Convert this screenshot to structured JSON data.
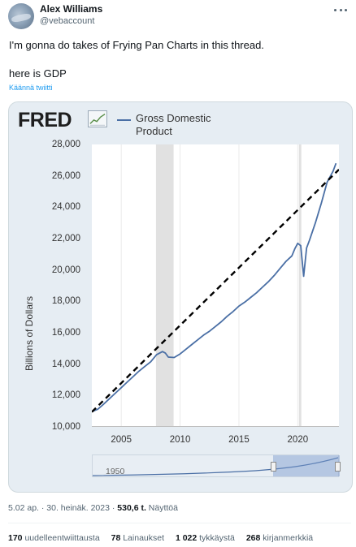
{
  "tweet": {
    "author_name": "Alex Williams",
    "author_handle": "@vebaccount",
    "text_line1": "I'm gonna do takes of Frying Pan Charts in this thread.",
    "text_line2": "here is GDP",
    "translate_label": "Käännä twiitti"
  },
  "fred": {
    "logo": "FRED",
    "series_name_line1": "Gross Domestic",
    "series_name_line2": "Product",
    "y_axis_title": "Billions of Dollars",
    "navigator_start_label": "1950"
  },
  "chart_data": {
    "type": "line",
    "ylabel": "Billions of Dollars",
    "ylim": [
      10000,
      28000
    ],
    "xlim": [
      2002.5,
      2023.5
    ],
    "y_ticks": [
      "28,000",
      "26,000",
      "24,000",
      "22,000",
      "20,000",
      "18,000",
      "16,000",
      "14,000",
      "12,000",
      "10,000"
    ],
    "x_ticks": [
      "2005",
      "2010",
      "2015",
      "2020"
    ],
    "grid": "vertical",
    "series": [
      {
        "name": "Gross Domestic Product",
        "color": "#4a6fa5",
        "style": "solid",
        "x": [
          2002.5,
          2003.0,
          2003.5,
          2004.0,
          2004.5,
          2005.0,
          2005.5,
          2006.0,
          2006.5,
          2007.0,
          2007.5,
          2008.0,
          2008.5,
          2008.75,
          2009.0,
          2009.5,
          2010.0,
          2010.5,
          2011.0,
          2011.5,
          2012.0,
          2012.5,
          2013.0,
          2013.5,
          2014.0,
          2014.5,
          2015.0,
          2015.5,
          2016.0,
          2016.5,
          2017.0,
          2017.5,
          2018.0,
          2018.5,
          2019.0,
          2019.5,
          2019.75,
          2020.0,
          2020.25,
          2020.5,
          2020.75,
          2021.0,
          2021.5,
          2022.0,
          2022.5,
          2023.0,
          2023.25
        ],
        "values": [
          10980,
          11120,
          11450,
          11800,
          12150,
          12500,
          12850,
          13200,
          13550,
          13850,
          14150,
          14600,
          14800,
          14700,
          14450,
          14420,
          14650,
          14950,
          15250,
          15550,
          15850,
          16100,
          16400,
          16700,
          17050,
          17350,
          17700,
          17950,
          18250,
          18550,
          18900,
          19250,
          19650,
          20100,
          20550,
          20900,
          21350,
          21700,
          21550,
          19600,
          21400,
          21900,
          23000,
          24250,
          25600,
          26300,
          26800
        ]
      },
      {
        "color": "#000000",
        "style": "dashed",
        "x": [
          2002.5,
          2023.5
        ],
        "values": [
          10950,
          26400
        ]
      }
    ],
    "recession_bands": [
      [
        2007.95,
        2009.45
      ],
      [
        2020.1,
        2020.3
      ]
    ]
  },
  "footer": {
    "timestamp": "5.02 ap. · 30. heinäk. 2023 · ",
    "views_count": "530,6 t.",
    "views_label": " Näyttöä",
    "retweets_count": "170",
    "retweets_label": " uudelleentwiittausta",
    "quotes_count": "78",
    "quotes_label": " Lainaukset",
    "likes_count": "1 022",
    "likes_label": " tykkäystä",
    "bookmarks_count": "268",
    "bookmarks_label": " kirjanmerkkiä"
  }
}
